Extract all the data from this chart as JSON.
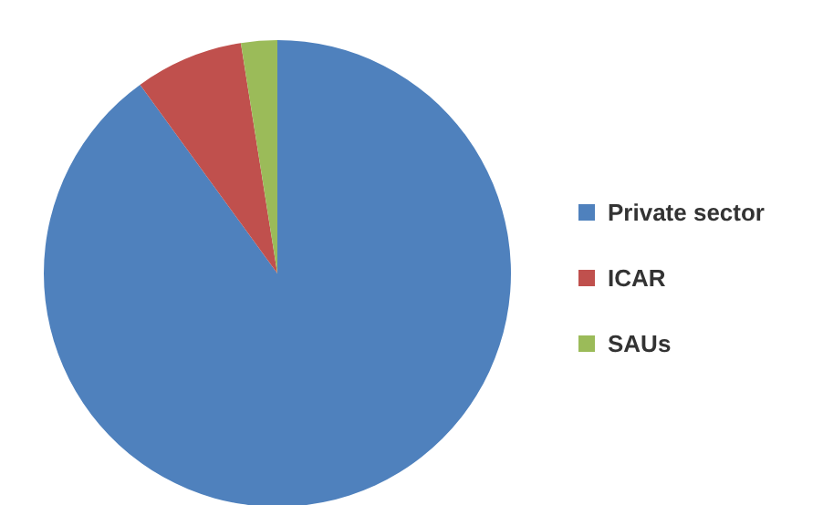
{
  "chart_data": {
    "type": "pie",
    "categories": [
      "Private sector",
      "ICAR",
      "SAUs"
    ],
    "values": [
      90,
      7.5,
      2.5
    ],
    "colors": [
      "#4f81bd",
      "#c0504d",
      "#9bbb59"
    ],
    "legend": "right"
  }
}
